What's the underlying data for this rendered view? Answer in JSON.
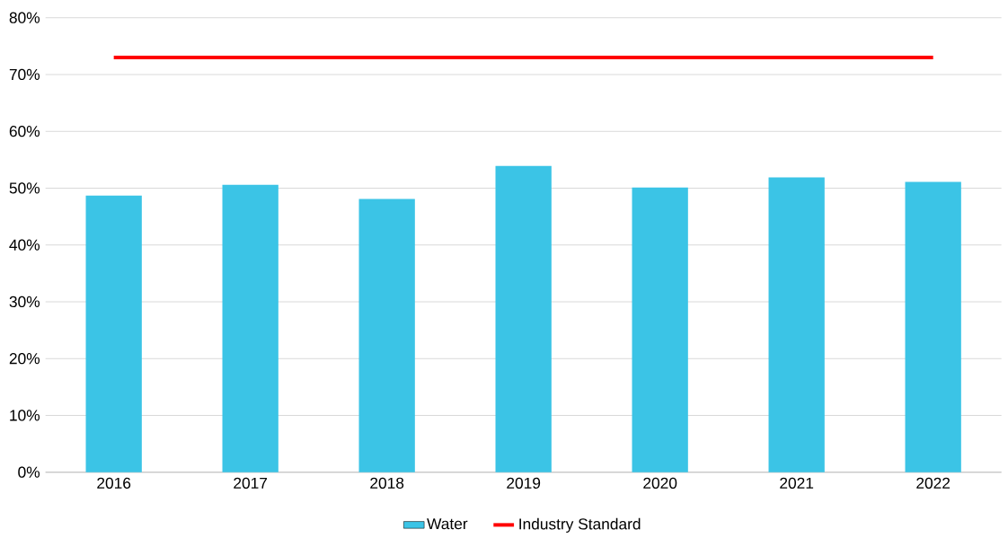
{
  "chart_data": {
    "type": "bar",
    "categories": [
      "2016",
      "2017",
      "2018",
      "2019",
      "2020",
      "2021",
      "2022"
    ],
    "series": [
      {
        "name": "Water",
        "color": "#3bc4e6",
        "values": [
          48.7,
          50.6,
          48.1,
          53.9,
          50.1,
          51.9,
          51.1
        ]
      },
      {
        "name": "Industry Standard",
        "type": "line",
        "color": "#ff0000",
        "values": [
          73,
          73,
          73,
          73,
          73,
          73,
          73
        ]
      }
    ],
    "ylim": [
      0,
      80
    ],
    "yticks": [
      {
        "value": 0,
        "label": "0%"
      },
      {
        "value": 10,
        "label": "10%"
      },
      {
        "value": 20,
        "label": "20%"
      },
      {
        "value": 30,
        "label": "30%"
      },
      {
        "value": 40,
        "label": "40%"
      },
      {
        "value": 50,
        "label": "50%"
      },
      {
        "value": 60,
        "label": "60%"
      },
      {
        "value": 70,
        "label": "70%"
      },
      {
        "value": 80,
        "label": "80%"
      }
    ],
    "grid": "y",
    "legend": "bottom"
  }
}
